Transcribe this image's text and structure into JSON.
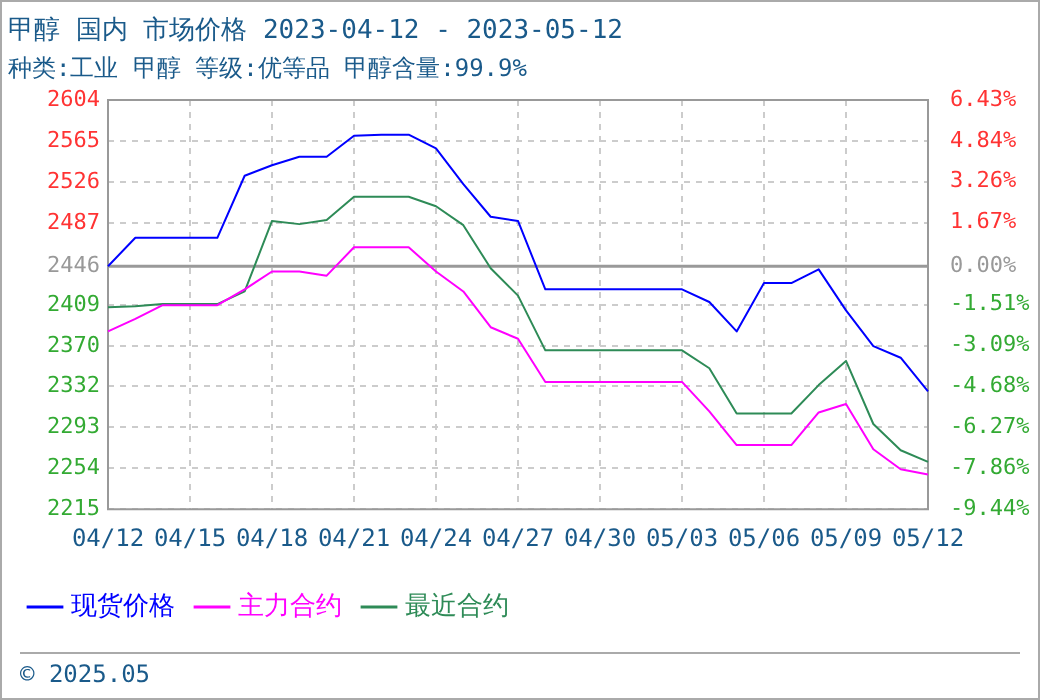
{
  "chart_data": {
    "type": "line",
    "title": "甲醇 国内 市场价格 2023-04-12 - 2023-05-12",
    "subtitle": "种类:工业 甲醇 等级:优等品 甲醇含量:99.9%",
    "categories": [
      "04/12",
      null,
      null,
      "04/15",
      null,
      null,
      "04/18",
      null,
      null,
      "04/21",
      null,
      null,
      "04/24",
      null,
      null,
      "04/27",
      null,
      null,
      "04/30",
      null,
      null,
      "05/03",
      null,
      null,
      "05/06",
      null,
      null,
      "05/09",
      null,
      null,
      "05/12"
    ],
    "series": [
      {
        "name": "现货价格",
        "color": "#0000ff",
        "values": [
          2446,
          2473,
          2473,
          2473,
          2473,
          2532,
          2542,
          2550,
          2550,
          2570,
          2571,
          2571,
          2558,
          2524,
          2493,
          2489,
          2424,
          2424,
          2424,
          2424,
          2424,
          2424,
          2412,
          2384,
          2430,
          2430,
          2443,
          2404,
          2370,
          2359,
          2327
        ]
      },
      {
        "name": "主力合约",
        "color": "#ff00ff",
        "values": [
          2384,
          2396,
          2409,
          2409,
          2409,
          2424,
          2441,
          2441,
          2437,
          2464,
          2464,
          2464,
          2441,
          2422,
          2388,
          2377,
          2336,
          2336,
          2336,
          2336,
          2336,
          2336,
          2308,
          2276,
          2276,
          2276,
          2307,
          2315,
          2272,
          2253,
          2248
        ]
      },
      {
        "name": "最近合约",
        "color": "#2e8b57",
        "values": [
          2407,
          2408,
          2410,
          2410,
          2410,
          2422,
          2489,
          2486,
          2490,
          2512,
          2512,
          2512,
          2503,
          2485,
          2444,
          2418,
          2366,
          2366,
          2366,
          2366,
          2366,
          2366,
          2349,
          2306,
          2306,
          2306,
          2333,
          2356,
          2296,
          2271,
          2260
        ]
      }
    ],
    "ylim": [
      2215,
      2604
    ],
    "yticks": [
      2215,
      2254,
      2293,
      2332,
      2370,
      2409,
      2446,
      2487,
      2526,
      2565,
      2604
    ],
    "y2lim": [
      -9.44,
      6.43
    ],
    "y2ticks": [
      {
        "value": -9.44,
        "label": "-9.44%"
      },
      {
        "value": -7.86,
        "label": "-7.86%"
      },
      {
        "value": -6.27,
        "label": "-6.27%"
      },
      {
        "value": -4.68,
        "label": "-4.68%"
      },
      {
        "value": -3.09,
        "label": "-3.09%"
      },
      {
        "value": -1.51,
        "label": "-1.51%"
      },
      {
        "value": 0,
        "label": "0.00%"
      },
      {
        "value": 1.67,
        "label": "1.67%"
      },
      {
        "value": 3.26,
        "label": "3.26%"
      },
      {
        "value": 4.84,
        "label": "4.84%"
      },
      {
        "value": 6.43,
        "label": "6.43%"
      }
    ],
    "ref_lines": [
      {
        "axis": "y",
        "value": 2446,
        "color": "#999999"
      }
    ],
    "grid": true,
    "legend": "bottom",
    "marker": "none",
    "line_style": "solid",
    "annotations": [
      "© 2025.05"
    ]
  }
}
